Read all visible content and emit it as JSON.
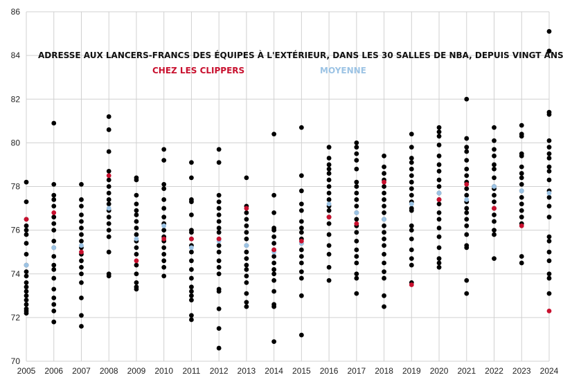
{
  "chart_data": {
    "type": "scatter",
    "title": "ADRESSE AUX LANCERS-FRANCS DES ÉQUIPES À L'EXTÉRIEUR, DANS LES 30 SALLES DE NBA, DEPUIS VINGT ANS",
    "legend": [
      {
        "label": "CHEZ LES CLIPPERS",
        "color": "#c8102e"
      },
      {
        "label": "MOYENNE",
        "color": "#9cc3e4"
      }
    ],
    "xlabel": "",
    "ylabel": "",
    "x_ticks": [
      "2005",
      "2006",
      "2007",
      "2008",
      "2009",
      "2010",
      "2011",
      "2012",
      "2013",
      "2014",
      "2015",
      "2016",
      "2017",
      "2018",
      "2019",
      "2020",
      "2021",
      "2022",
      "2023",
      "2024"
    ],
    "ylim": [
      70,
      86
    ],
    "y_ticks": [
      70,
      72,
      74,
      76,
      78,
      80,
      82,
      84,
      86
    ],
    "grid": true,
    "colors": {
      "point": "#000000",
      "clippers": "#c8102e",
      "average": "#9cc3e4"
    },
    "series": [
      {
        "year": "2005",
        "values": [
          78.2,
          77.3,
          76.5,
          76.2,
          76.0,
          75.8,
          75.4,
          74.9,
          74.4,
          74.1,
          73.9,
          73.6,
          73.4,
          73.2,
          73.0,
          72.8,
          72.6,
          72.4,
          72.3,
          72.2
        ],
        "clippers": 76.5,
        "average": 74.4
      },
      {
        "year": "2006",
        "values": [
          80.9,
          78.1,
          77.6,
          77.4,
          77.1,
          76.6,
          76.3,
          76.0,
          75.5,
          75.2,
          74.8,
          74.4,
          74.2,
          73.8,
          73.3,
          72.9,
          72.6,
          72.3,
          71.8
        ],
        "clippers": 76.8,
        "average": 75.2
      },
      {
        "year": "2007",
        "values": [
          78.1,
          77.4,
          77.1,
          76.7,
          76.4,
          76.1,
          75.8,
          75.5,
          75.2,
          74.9,
          74.6,
          74.3,
          74.0,
          73.6,
          72.9,
          72.1,
          71.6
        ],
        "clippers": 75.0,
        "average": 75.3
      },
      {
        "year": "2008",
        "values": [
          81.2,
          80.6,
          79.6,
          78.7,
          78.3,
          78.0,
          77.7,
          77.4,
          77.2,
          76.9,
          76.6,
          76.3,
          76.0,
          75.7,
          75.0,
          74.0,
          73.9
        ],
        "clippers": 78.5,
        "average": 77.0
      },
      {
        "year": "2009",
        "values": [
          78.4,
          78.3,
          77.6,
          77.2,
          76.9,
          76.7,
          76.4,
          76.1,
          75.8,
          75.5,
          75.2,
          74.9,
          74.4,
          74.0,
          73.6,
          73.4,
          73.3
        ],
        "clippers": 74.6,
        "average": 75.6
      },
      {
        "year": "2010",
        "values": [
          79.7,
          79.2,
          78.1,
          77.9,
          77.4,
          77.0,
          76.6,
          76.3,
          76.0,
          75.7,
          75.5,
          75.2,
          74.9,
          74.6,
          74.3,
          73.9
        ],
        "clippers": 75.6,
        "average": 76.2
      },
      {
        "year": "2011",
        "values": [
          79.1,
          78.4,
          77.4,
          77.3,
          76.7,
          76.0,
          75.9,
          75.6,
          75.3,
          75.0,
          74.6,
          74.2,
          73.8,
          73.4,
          73.2,
          73.0,
          72.8,
          72.1,
          71.9
        ],
        "clippers": 75.6,
        "average": 75.2
      },
      {
        "year": "2012",
        "values": [
          79.7,
          79.1,
          77.6,
          77.3,
          77.0,
          76.7,
          76.4,
          76.1,
          75.9,
          75.6,
          75.3,
          75.0,
          74.6,
          74.3,
          74.0,
          73.3,
          73.2,
          72.4,
          71.5,
          70.6
        ],
        "clippers": 75.6,
        "average": 75.5
      },
      {
        "year": "2013",
        "values": [
          78.4,
          77.1,
          76.8,
          76.5,
          76.2,
          75.9,
          75.6,
          75.3,
          75.0,
          74.7,
          74.4,
          74.2,
          73.9,
          73.6,
          73.1,
          72.7,
          72.5
        ],
        "clippers": 77.0,
        "average": 75.3
      },
      {
        "year": "2014",
        "values": [
          80.4,
          77.6,
          76.8,
          76.1,
          76.0,
          75.7,
          75.4,
          75.1,
          74.8,
          74.5,
          74.2,
          74.0,
          73.7,
          73.2,
          72.6,
          72.5,
          70.9
        ],
        "clippers": 75.1,
        "average": 75.0
      },
      {
        "year": "2015",
        "values": [
          80.7,
          78.5,
          77.8,
          77.2,
          76.9,
          76.4,
          76.1,
          75.9,
          75.6,
          75.4,
          75.1,
          74.8,
          74.5,
          74.1,
          73.8,
          73.0,
          71.2
        ],
        "clippers": 75.5,
        "average": 75.4
      },
      {
        "year": "2016",
        "values": [
          79.8,
          79.3,
          79.0,
          78.8,
          78.6,
          78.3,
          78.0,
          77.7,
          77.4,
          77.1,
          76.9,
          76.6,
          76.3,
          75.8,
          75.3,
          74.9,
          74.3,
          73.7
        ],
        "clippers": 76.6,
        "average": 77.2
      },
      {
        "year": "2017",
        "values": [
          80.0,
          79.8,
          79.5,
          79.2,
          78.8,
          78.2,
          78.0,
          77.7,
          77.4,
          77.1,
          76.8,
          76.5,
          76.2,
          75.9,
          75.5,
          75.1,
          74.8,
          74.5,
          74.0,
          73.8,
          73.1
        ],
        "clippers": 76.3,
        "average": 76.8
      },
      {
        "year": "2018",
        "values": [
          79.4,
          78.9,
          78.6,
          78.3,
          78.0,
          77.7,
          77.4,
          77.1,
          76.8,
          76.5,
          76.2,
          75.9,
          75.6,
          75.3,
          74.9,
          74.5,
          74.1,
          73.8,
          73.0,
          72.5
        ],
        "clippers": 78.2,
        "average": 76.5
      },
      {
        "year": "2019",
        "values": [
          80.4,
          79.8,
          79.3,
          79.1,
          78.8,
          78.5,
          78.2,
          77.9,
          77.6,
          77.3,
          77.0,
          76.9,
          76.2,
          76.0,
          75.6,
          75.1,
          74.7,
          74.4,
          73.6
        ],
        "clippers": 73.5,
        "average": 77.2
      },
      {
        "year": "2020",
        "values": [
          80.7,
          80.5,
          80.3,
          79.9,
          79.4,
          79.0,
          78.7,
          78.3,
          78.0,
          77.7,
          77.4,
          77.2,
          76.8,
          76.5,
          76.1,
          75.7,
          75.2,
          74.7,
          74.5,
          74.3
        ],
        "clippers": 77.4,
        "average": 77.7
      },
      {
        "year": "2021",
        "values": [
          82.0,
          80.2,
          79.8,
          79.6,
          79.2,
          78.8,
          78.5,
          78.2,
          77.9,
          77.6,
          77.3,
          77.0,
          76.8,
          76.5,
          76.2,
          75.8,
          75.3,
          75.2,
          73.7,
          73.1
        ],
        "clippers": 78.1,
        "average": 77.4
      },
      {
        "year": "2022",
        "values": [
          80.7,
          80.1,
          79.7,
          79.4,
          79.0,
          78.8,
          78.4,
          78.0,
          77.9,
          77.6,
          77.3,
          77.0,
          76.7,
          76.4,
          76.0,
          75.8,
          74.7
        ],
        "clippers": 77.0,
        "average": 78.0
      },
      {
        "year": "2023",
        "values": [
          80.8,
          80.4,
          80.3,
          79.5,
          79.4,
          78.9,
          78.6,
          78.4,
          78.1,
          77.8,
          77.5,
          77.2,
          76.9,
          76.6,
          76.3,
          74.8,
          74.5
        ],
        "clippers": 76.2,
        "average": 77.8
      },
      {
        "year": "2024",
        "values": [
          85.1,
          84.2,
          81.4,
          81.3,
          80.1,
          79.8,
          79.5,
          79.3,
          78.9,
          78.7,
          78.3,
          77.8,
          77.5,
          77.1,
          76.6,
          75.7,
          75.5,
          75.0,
          74.6,
          74.0,
          73.8,
          73.1
        ],
        "clippers": 72.3,
        "average": 77.7
      }
    ]
  }
}
